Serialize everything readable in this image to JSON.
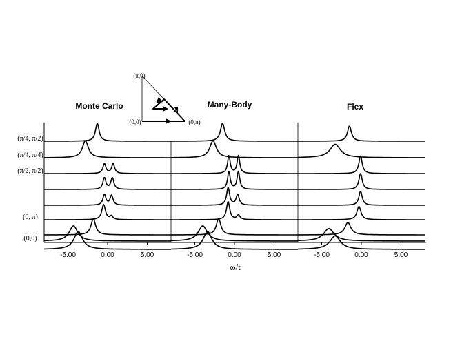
{
  "chart_data": {
    "type": "line",
    "xlabel": "ω/t",
    "xlim": [
      -8,
      8
    ],
    "x_ticks": [
      -5,
      0,
      5
    ],
    "x_tick_labels": [
      "-5.00",
      "0.00",
      "5.00"
    ],
    "k_labels": [
      {
        "curve": 0,
        "text": "(π/4, π/2)"
      },
      {
        "curve": 1,
        "text": "(π/4, π/4)"
      },
      {
        "curve": 2,
        "text": "(π/2, π/2)"
      },
      {
        "curve": 5,
        "text": "(0, π)"
      },
      {
        "curve": 8,
        "text": "(0,0)"
      }
    ],
    "inset": {
      "labels": [
        "(π,0)",
        "(0,0)",
        "(0,π)"
      ]
    },
    "panels": [
      {
        "title": "Monte Carlo",
        "curves": [
          {
            "peaks": [
              {
                "pos": -1.3,
                "h": 1.0,
                "w": 0.55
              }
            ]
          },
          {
            "peaks": [
              {
                "pos": -2.8,
                "h": 0.95,
                "w": 0.9
              }
            ]
          },
          {
            "peaks": [
              {
                "pos": -0.4,
                "h": 0.55,
                "w": 0.45
              },
              {
                "pos": 0.7,
                "h": 0.55,
                "w": 0.45
              }
            ]
          },
          {
            "peaks": [
              {
                "pos": -0.4,
                "h": 0.65,
                "w": 0.45
              },
              {
                "pos": 0.6,
                "h": 0.65,
                "w": 0.45
              }
            ]
          },
          {
            "peaks": [
              {
                "pos": -0.4,
                "h": 0.6,
                "w": 0.45
              },
              {
                "pos": 0.5,
                "h": 0.55,
                "w": 0.45
              }
            ]
          },
          {
            "peaks": [
              {
                "pos": -0.5,
                "h": 0.85,
                "w": 0.55
              },
              {
                "pos": 0.5,
                "h": 0.2,
                "w": 0.4
              }
            ]
          },
          {
            "peaks": [
              {
                "pos": -1.8,
                "h": 0.9,
                "w": 0.7
              }
            ]
          },
          {
            "peaks": [
              {
                "pos": -3.7,
                "h": 1.0,
                "w": 1.3
              }
            ]
          },
          {
            "peaks": [
              {
                "pos": -4.3,
                "h": 0.85,
                "w": 1.3
              }
            ]
          }
        ]
      },
      {
        "title": "Many-Body",
        "curves": [
          {
            "peaks": [
              {
                "pos": -1.5,
                "h": 1.0,
                "w": 0.65
              }
            ]
          },
          {
            "peaks": [
              {
                "pos": -2.7,
                "h": 0.95,
                "w": 1.0
              }
            ]
          },
          {
            "peaks": [
              {
                "pos": -0.7,
                "h": 1.0,
                "w": 0.4
              },
              {
                "pos": 0.5,
                "h": 1.0,
                "w": 0.4
              }
            ]
          },
          {
            "peaks": [
              {
                "pos": -0.7,
                "h": 1.0,
                "w": 0.4
              },
              {
                "pos": 0.5,
                "h": 1.0,
                "w": 0.4
              }
            ]
          },
          {
            "peaks": [
              {
                "pos": -0.8,
                "h": 1.0,
                "w": 0.45
              },
              {
                "pos": 0.4,
                "h": 0.6,
                "w": 0.45
              }
            ]
          },
          {
            "peaks": [
              {
                "pos": -0.8,
                "h": 1.0,
                "w": 0.5
              },
              {
                "pos": 0.5,
                "h": 0.25,
                "w": 0.5
              }
            ]
          },
          {
            "peaks": [
              {
                "pos": -2.0,
                "h": 0.9,
                "w": 0.7
              }
            ]
          },
          {
            "peaks": [
              {
                "pos": -3.4,
                "h": 1.0,
                "w": 1.3
              }
            ]
          },
          {
            "peaks": [
              {
                "pos": -4.0,
                "h": 0.85,
                "w": 1.4
              }
            ]
          }
        ]
      },
      {
        "title": "Flex",
        "curves": [
          {
            "peaks": [
              {
                "pos": -1.5,
                "h": 0.85,
                "w": 0.6
              }
            ]
          },
          {
            "peaks": [
              {
                "pos": -3.3,
                "h": 0.75,
                "w": 1.6
              }
            ]
          },
          {
            "peaks": [
              {
                "pos": -0.1,
                "h": 1.0,
                "w": 0.5
              }
            ]
          },
          {
            "peaks": [
              {
                "pos": -0.1,
                "h": 0.9,
                "w": 0.5
              }
            ]
          },
          {
            "peaks": [
              {
                "pos": -0.1,
                "h": 0.8,
                "w": 0.5
              }
            ]
          },
          {
            "peaks": [
              {
                "pos": -0.3,
                "h": 0.75,
                "w": 0.6
              }
            ]
          },
          {
            "peaks": [
              {
                "pos": -1.7,
                "h": 0.7,
                "w": 0.9
              }
            ]
          },
          {
            "peaks": [
              {
                "pos": -3.3,
                "h": 0.75,
                "w": 1.6
              }
            ]
          },
          {
            "peaks": [
              {
                "pos": -4.1,
                "h": 0.7,
                "w": 1.6
              }
            ]
          }
        ]
      }
    ]
  }
}
